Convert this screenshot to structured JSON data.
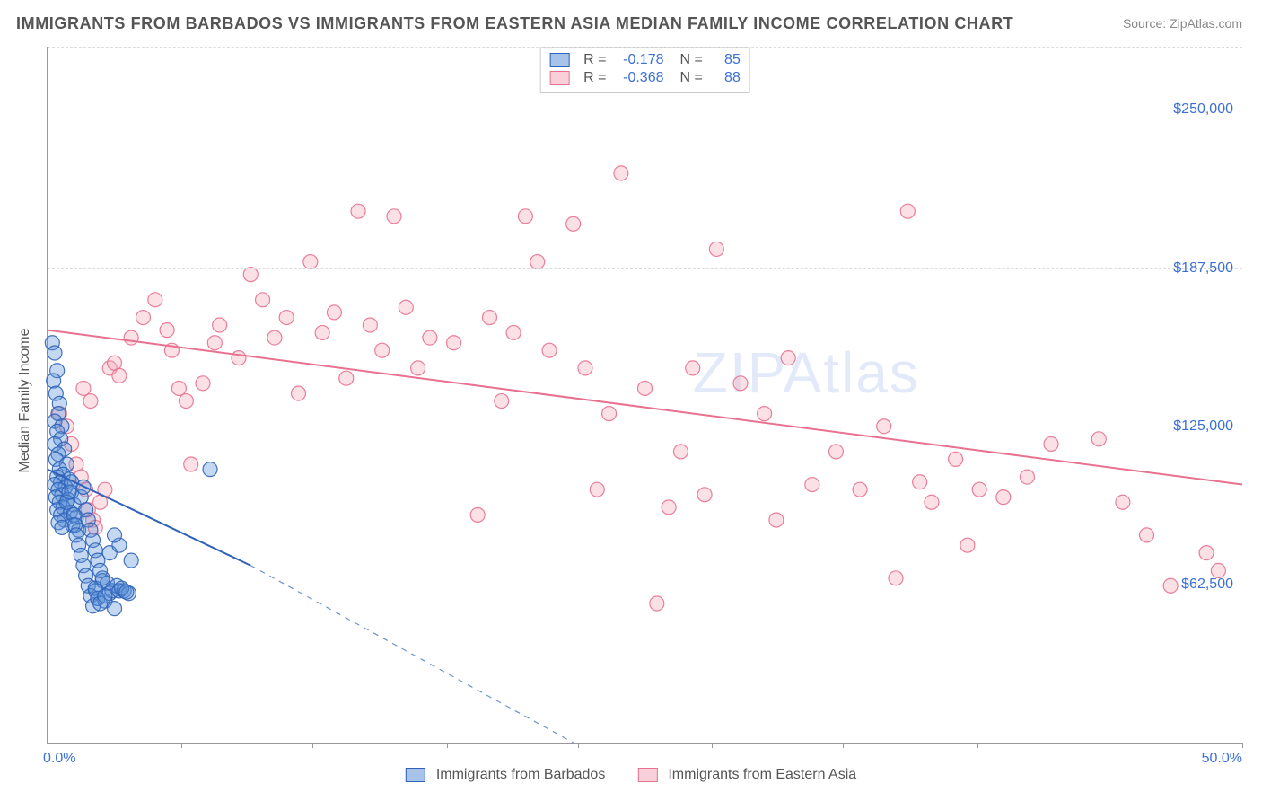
{
  "title": "IMMIGRANTS FROM BARBADOS VS IMMIGRANTS FROM EASTERN ASIA MEDIAN FAMILY INCOME CORRELATION CHART",
  "source": "Source: ZipAtlas.com",
  "watermark": "ZIPAtlas",
  "ylabel": "Median Family Income",
  "chart": {
    "type": "scatter",
    "xlim": [
      0,
      50
    ],
    "ylim": [
      0,
      275000
    ],
    "x_tick_positions": [
      0,
      5.6,
      11.1,
      16.7,
      22.2,
      27.8,
      33.3,
      38.9,
      44.4,
      50
    ],
    "x_axis_min_label": "0.0%",
    "x_axis_max_label": "50.0%",
    "y_gridlines": [
      62500,
      125000,
      187500,
      250000,
      275000
    ],
    "y_tick_labels": [
      "$62,500",
      "$125,000",
      "$187,500",
      "$250,000"
    ],
    "background_color": "#ffffff",
    "grid_color": "#dcdcdc",
    "axis_color": "#999999",
    "text_color": "#555555",
    "accent_color": "#3b6fd6",
    "title_fontsize": 18,
    "label_fontsize": 16,
    "marker_radius": 8,
    "marker_opacity": 0.35,
    "line_width": 2
  },
  "series": [
    {
      "name": "Immigrants from Barbados",
      "fill_color": "#5a8fd6",
      "stroke_color": "#2f63b8",
      "R": "-0.178",
      "N": "85",
      "trend": {
        "x1": 0,
        "y1": 108000,
        "x2": 8.5,
        "y2": 70000,
        "x_dash_to": 22,
        "y_dash_to": 0
      },
      "points": [
        [
          0.2,
          158000
        ],
        [
          0.3,
          154000
        ],
        [
          0.4,
          147000
        ],
        [
          0.25,
          143000
        ],
        [
          0.35,
          138000
        ],
        [
          0.5,
          134000
        ],
        [
          0.45,
          130000
        ],
        [
          0.3,
          127000
        ],
        [
          0.6,
          125000
        ],
        [
          0.4,
          123000
        ],
        [
          0.55,
          120000
        ],
        [
          0.3,
          118000
        ],
        [
          0.7,
          116000
        ],
        [
          0.45,
          114000
        ],
        [
          0.35,
          112000
        ],
        [
          0.8,
          110000
        ],
        [
          0.5,
          108000
        ],
        [
          0.65,
          106000
        ],
        [
          0.4,
          105000
        ],
        [
          0.9,
          104000
        ],
        [
          0.55,
          103000
        ],
        [
          0.3,
          102000
        ],
        [
          0.75,
          101000
        ],
        [
          0.45,
          100000
        ],
        [
          1.0,
          99000
        ],
        [
          0.6,
          98000
        ],
        [
          0.35,
          97000
        ],
        [
          0.85,
          96000
        ],
        [
          0.5,
          95000
        ],
        [
          1.1,
          94000
        ],
        [
          0.65,
          93000
        ],
        [
          0.4,
          92000
        ],
        [
          0.95,
          91000
        ],
        [
          0.55,
          90000
        ],
        [
          1.2,
          89000
        ],
        [
          0.7,
          88000
        ],
        [
          0.45,
          87000
        ],
        [
          1.05,
          86000
        ],
        [
          0.6,
          85000
        ],
        [
          1.3,
          84000
        ],
        [
          0.8,
          95000
        ],
        [
          1.4,
          97000
        ],
        [
          0.9,
          99000
        ],
        [
          1.5,
          101000
        ],
        [
          1.0,
          103000
        ],
        [
          1.6,
          92000
        ],
        [
          1.1,
          90000
        ],
        [
          1.7,
          88000
        ],
        [
          1.15,
          86000
        ],
        [
          1.8,
          84000
        ],
        [
          1.2,
          82000
        ],
        [
          1.9,
          80000
        ],
        [
          1.3,
          78000
        ],
        [
          2.0,
          76000
        ],
        [
          1.4,
          74000
        ],
        [
          2.1,
          72000
        ],
        [
          1.5,
          70000
        ],
        [
          2.2,
          68000
        ],
        [
          1.6,
          66000
        ],
        [
          2.3,
          64000
        ],
        [
          1.7,
          62000
        ],
        [
          2.0,
          60000
        ],
        [
          1.8,
          58000
        ],
        [
          2.4,
          56000
        ],
        [
          1.9,
          54000
        ],
        [
          2.5,
          63000
        ],
        [
          2.0,
          61000
        ],
        [
          2.6,
          59000
        ],
        [
          2.1,
          57000
        ],
        [
          2.7,
          60000
        ],
        [
          2.2,
          55000
        ],
        [
          2.8,
          53000
        ],
        [
          2.3,
          65000
        ],
        [
          2.9,
          62000
        ],
        [
          2.4,
          58000
        ],
        [
          3.0,
          60000
        ],
        [
          3.2,
          60000
        ],
        [
          3.4,
          59000
        ],
        [
          3.1,
          61000
        ],
        [
          3.3,
          59500
        ],
        [
          2.6,
          75000
        ],
        [
          3.0,
          78000
        ],
        [
          3.5,
          72000
        ],
        [
          6.8,
          108000
        ],
        [
          2.8,
          82000
        ]
      ]
    },
    {
      "name": "Immigrants from Eastern Asia",
      "fill_color": "#f4a6b8",
      "stroke_color": "#e8718f",
      "R": "-0.368",
      "N": "88",
      "trend": {
        "x1": 0,
        "y1": 163000,
        "x2": 50,
        "y2": 102000
      },
      "points": [
        [
          0.5,
          130000
        ],
        [
          0.8,
          125000
        ],
        [
          1.0,
          118000
        ],
        [
          1.2,
          110000
        ],
        [
          1.4,
          105000
        ],
        [
          1.6,
          100000
        ],
        [
          1.5,
          140000
        ],
        [
          1.8,
          135000
        ],
        [
          1.7,
          92000
        ],
        [
          1.9,
          88000
        ],
        [
          2.0,
          85000
        ],
        [
          2.2,
          95000
        ],
        [
          2.4,
          100000
        ],
        [
          2.6,
          148000
        ],
        [
          2.8,
          150000
        ],
        [
          3.0,
          145000
        ],
        [
          3.5,
          160000
        ],
        [
          4.0,
          168000
        ],
        [
          4.5,
          175000
        ],
        [
          5.0,
          163000
        ],
        [
          5.2,
          155000
        ],
        [
          5.5,
          140000
        ],
        [
          5.8,
          135000
        ],
        [
          6.0,
          110000
        ],
        [
          6.5,
          142000
        ],
        [
          7.0,
          158000
        ],
        [
          7.2,
          165000
        ],
        [
          8.0,
          152000
        ],
        [
          8.5,
          185000
        ],
        [
          9.0,
          175000
        ],
        [
          9.5,
          160000
        ],
        [
          10.0,
          168000
        ],
        [
          10.5,
          138000
        ],
        [
          11.0,
          190000
        ],
        [
          11.5,
          162000
        ],
        [
          12.0,
          170000
        ],
        [
          12.5,
          144000
        ],
        [
          13.0,
          210000
        ],
        [
          13.5,
          165000
        ],
        [
          14.0,
          155000
        ],
        [
          14.5,
          208000
        ],
        [
          15.0,
          172000
        ],
        [
          15.5,
          148000
        ],
        [
          16.0,
          160000
        ],
        [
          17.0,
          158000
        ],
        [
          18.0,
          90000
        ],
        [
          18.5,
          168000
        ],
        [
          19.0,
          135000
        ],
        [
          19.5,
          162000
        ],
        [
          20.0,
          208000
        ],
        [
          20.5,
          190000
        ],
        [
          21.0,
          155000
        ],
        [
          22.0,
          205000
        ],
        [
          22.5,
          148000
        ],
        [
          23.0,
          100000
        ],
        [
          23.5,
          130000
        ],
        [
          24.0,
          225000
        ],
        [
          25.0,
          140000
        ],
        [
          25.5,
          55000
        ],
        [
          26.0,
          93000
        ],
        [
          26.5,
          115000
        ],
        [
          27.0,
          148000
        ],
        [
          27.5,
          98000
        ],
        [
          28.0,
          195000
        ],
        [
          29.0,
          142000
        ],
        [
          30.0,
          130000
        ],
        [
          30.5,
          88000
        ],
        [
          31.0,
          152000
        ],
        [
          32.0,
          102000
        ],
        [
          33.0,
          115000
        ],
        [
          34.0,
          100000
        ],
        [
          35.0,
          125000
        ],
        [
          35.5,
          65000
        ],
        [
          36.0,
          210000
        ],
        [
          36.5,
          103000
        ],
        [
          37.0,
          95000
        ],
        [
          38.0,
          112000
        ],
        [
          38.5,
          78000
        ],
        [
          39.0,
          100000
        ],
        [
          40.0,
          97000
        ],
        [
          41.0,
          105000
        ],
        [
          42.0,
          118000
        ],
        [
          44.0,
          120000
        ],
        [
          45.0,
          95000
        ],
        [
          46.0,
          82000
        ],
        [
          47.0,
          62000
        ],
        [
          48.5,
          75000
        ],
        [
          49.0,
          68000
        ]
      ]
    }
  ],
  "legend_bottom": [
    "Immigrants from Barbados",
    "Immigrants from Eastern Asia"
  ]
}
